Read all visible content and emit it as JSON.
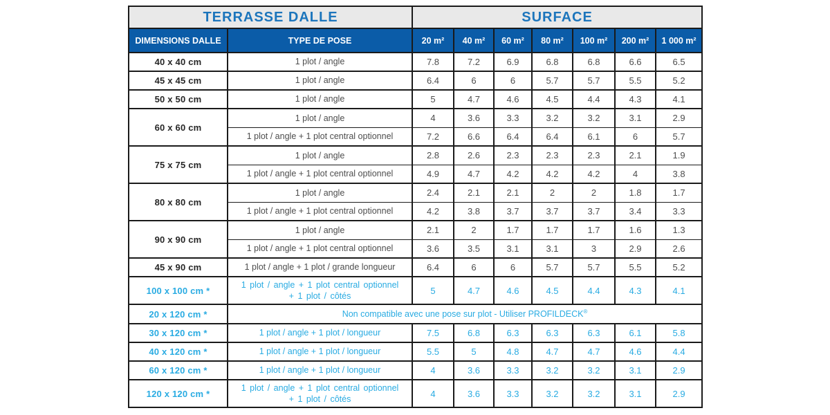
{
  "colors": {
    "header_blue": "#0B5CA8",
    "title_blue": "#1C75BC",
    "accent_cyan": "#29ABE2",
    "grid_line": "#1A1A1A",
    "header_gray": "#E9E9E9"
  },
  "table": {
    "title_left": "TERRASSE DALLE",
    "title_right": "SURFACE",
    "col_dimensions": "DIMENSIONS DALLE",
    "col_pose": "TYPE DE POSE",
    "surface_headers": [
      "20 m²",
      "40 m²",
      "60 m²",
      "80 m²",
      "100 m²",
      "200 m²",
      "1 000 m²"
    ],
    "rows": [
      {
        "dim": "40 x 40 cm",
        "accent": false,
        "subrows": [
          {
            "pose": "1 plot / angle",
            "values": [
              "7.8",
              "7.2",
              "6.9",
              "6.8",
              "6.8",
              "6.6",
              "6.5"
            ]
          }
        ]
      },
      {
        "dim": "45 x 45 cm",
        "accent": false,
        "subrows": [
          {
            "pose": "1 plot / angle",
            "values": [
              "6.4",
              "6",
              "6",
              "5.7",
              "5.7",
              "5.5",
              "5.2"
            ]
          }
        ]
      },
      {
        "dim": "50 x 50 cm",
        "accent": false,
        "subrows": [
          {
            "pose": "1 plot / angle",
            "values": [
              "5",
              "4.7",
              "4.6",
              "4.5",
              "4.4",
              "4.3",
              "4.1"
            ]
          }
        ]
      },
      {
        "dim": "60 x 60 cm",
        "accent": false,
        "subrows": [
          {
            "pose": "1 plot / angle",
            "values": [
              "4",
              "3.6",
              "3.3",
              "3.2",
              "3.2",
              "3.1",
              "2.9"
            ]
          },
          {
            "pose": "1 plot / angle + 1 plot central optionnel",
            "values": [
              "7.2",
              "6.6",
              "6.4",
              "6.4",
              "6.1",
              "6",
              "5.7"
            ]
          }
        ]
      },
      {
        "dim": "75 x 75 cm",
        "accent": false,
        "subrows": [
          {
            "pose": "1 plot / angle",
            "values": [
              "2.8",
              "2.6",
              "2.3",
              "2.3",
              "2.3",
              "2.1",
              "1.9"
            ]
          },
          {
            "pose": "1 plot / angle + 1 plot central optionnel",
            "values": [
              "4.9",
              "4.7",
              "4.2",
              "4.2",
              "4.2",
              "4",
              "3.8"
            ]
          }
        ]
      },
      {
        "dim": "80 x 80 cm",
        "accent": false,
        "subrows": [
          {
            "pose": "1 plot / angle",
            "values": [
              "2.4",
              "2.1",
              "2.1",
              "2",
              "2",
              "1.8",
              "1.7"
            ]
          },
          {
            "pose": "1 plot / angle + 1 plot central optionnel",
            "values": [
              "4.2",
              "3.8",
              "3.7",
              "3.7",
              "3.7",
              "3.4",
              "3.3"
            ]
          }
        ]
      },
      {
        "dim": "90 x 90 cm",
        "accent": false,
        "subrows": [
          {
            "pose": "1 plot / angle",
            "values": [
              "2.1",
              "2",
              "1.7",
              "1.7",
              "1.7",
              "1.6",
              "1.3"
            ]
          },
          {
            "pose": "1 plot / angle + 1 plot central optionnel",
            "values": [
              "3.6",
              "3.5",
              "3.1",
              "3.1",
              "3",
              "2.9",
              "2.6"
            ]
          }
        ]
      },
      {
        "dim": "45 x 90 cm",
        "accent": false,
        "subrows": [
          {
            "pose": "1 plot / angle + 1 plot / grande longueur",
            "values": [
              "6.4",
              "6",
              "6",
              "5.7",
              "5.7",
              "5.5",
              "5.2"
            ]
          }
        ]
      },
      {
        "dim": "100 x 100 cm *",
        "accent": true,
        "tall": true,
        "subrows": [
          {
            "pose": "1 plot / angle + 1 plot central optionnel\n+ 1 plot / côtés",
            "values": [
              "5",
              "4.7",
              "4.6",
              "4.5",
              "4.4",
              "4.3",
              "4.1"
            ]
          }
        ]
      },
      {
        "dim": "20 x 120 cm *",
        "accent": true,
        "note": "Non compatible avec une pose sur plot - Utiliser PROFILDECK",
        "note_sup": "®"
      },
      {
        "dim": "30 x 120 cm *",
        "accent": true,
        "subrows": [
          {
            "pose": "1 plot / angle + 1 plot / longueur",
            "values": [
              "7.5",
              "6.8",
              "6.3",
              "6.3",
              "6.3",
              "6.1",
              "5.8"
            ]
          }
        ]
      },
      {
        "dim": "40 x 120 cm *",
        "accent": true,
        "subrows": [
          {
            "pose": "1 plot / angle + 1 plot / longueur",
            "values": [
              "5.5",
              "5",
              "4.8",
              "4.7",
              "4.7",
              "4.6",
              "4.4"
            ]
          }
        ]
      },
      {
        "dim": "60 x 120 cm *",
        "accent": true,
        "subrows": [
          {
            "pose": "1 plot / angle + 1 plot / longueur",
            "values": [
              "4",
              "3.6",
              "3.3",
              "3.2",
              "3.2",
              "3.1",
              "2.9"
            ]
          }
        ]
      },
      {
        "dim": "120 x 120 cm *",
        "accent": true,
        "tall": true,
        "subrows": [
          {
            "pose": "1 plot / angle + 1 plot central optionnel\n+ 1 plot / côtés",
            "values": [
              "4",
              "3.6",
              "3.3",
              "3.2",
              "3.2",
              "3.1",
              "2.9"
            ]
          }
        ]
      }
    ]
  }
}
